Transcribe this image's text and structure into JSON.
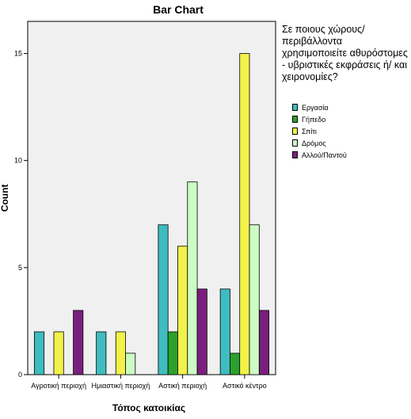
{
  "chart_data": {
    "type": "bar",
    "title": "Bar Chart",
    "xlabel": "Τόπος κατοικίας",
    "ylabel": "Count",
    "ylim": [
      0,
      16.5
    ],
    "yticks": [
      0,
      5,
      10,
      15
    ],
    "categories": [
      "Αγροτική περιοχή",
      "Ημιαστική περιοχή",
      "Αστική περιοχή",
      "Αστικό κέντρο"
    ],
    "legend_title": "Σε ποιους χώρους/περιβάλλοντα χρησιμοποιείτε αθυρόστομες - υβριστικές εκφράσεις ή/ και χειρονομίες?",
    "legend_position": "right",
    "grid": false,
    "series": [
      {
        "name": "Εργασία",
        "color": "#3fbcc0",
        "values": [
          2,
          2,
          7,
          4
        ]
      },
      {
        "name": "Γήπεδο",
        "color": "#2ca02c",
        "values": [
          null,
          null,
          2,
          1
        ]
      },
      {
        "name": "Σπίτι",
        "color": "#f2f24a",
        "values": [
          2,
          2,
          6,
          15
        ]
      },
      {
        "name": "Δρόμος",
        "color": "#ccfcc4",
        "values": [
          null,
          1,
          9,
          7
        ]
      },
      {
        "name": "Αλλού/Παντού",
        "color": "#7b1f7e",
        "values": [
          3,
          null,
          4,
          3
        ]
      }
    ]
  }
}
